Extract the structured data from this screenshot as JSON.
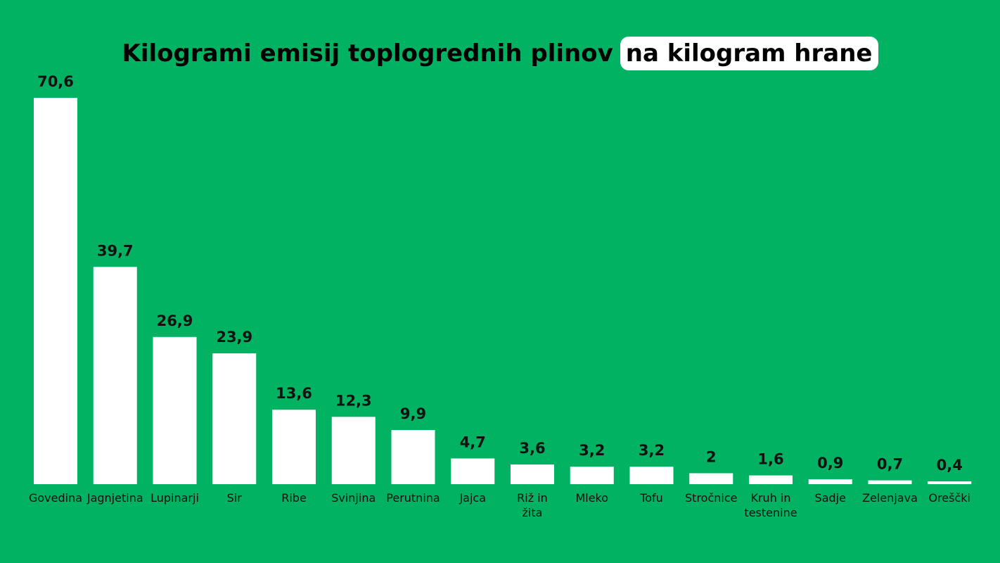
{
  "title": {
    "main": "Kilogrami emisij toplogrednih plinov",
    "highlight": "na kilogram hrane"
  },
  "colors": {
    "background": "#00B262",
    "bar": "#FFFFFF",
    "text": "#111111",
    "highlight_bg": "#FFFFFF"
  },
  "chart_data": {
    "type": "bar",
    "title": "Kilogrami emisij toplogrednih plinov na kilogram hrane",
    "xlabel": "",
    "ylabel": "",
    "ylim": [
      0,
      70.6
    ],
    "grid": false,
    "legend": "none",
    "categories": [
      [
        "Govedina"
      ],
      [
        "Jagnjetina"
      ],
      [
        "Lupinarji"
      ],
      [
        "Sir"
      ],
      [
        "Ribe"
      ],
      [
        "Svinjina"
      ],
      [
        "Perutnina"
      ],
      [
        "Jajca"
      ],
      [
        "Riž in",
        "žita"
      ],
      [
        "Mleko"
      ],
      [
        "Tofu"
      ],
      [
        "Stročnice"
      ],
      [
        "Kruh in",
        "testenine"
      ],
      [
        "Sadje"
      ],
      [
        "Zelenjava"
      ],
      [
        "Oreščki"
      ]
    ],
    "values": [
      70.6,
      39.7,
      26.9,
      23.9,
      13.6,
      12.3,
      9.9,
      4.7,
      3.6,
      3.2,
      3.2,
      2,
      1.6,
      0.9,
      0.7,
      0.4
    ],
    "value_labels": [
      "70,6",
      "39,7",
      "26,9",
      "23,9",
      "13,6",
      "12,3",
      "9,9",
      "4,7",
      "3,6",
      "3,2",
      "3,2",
      "2",
      "1,6",
      "0,9",
      "0,7",
      "0,4"
    ]
  }
}
